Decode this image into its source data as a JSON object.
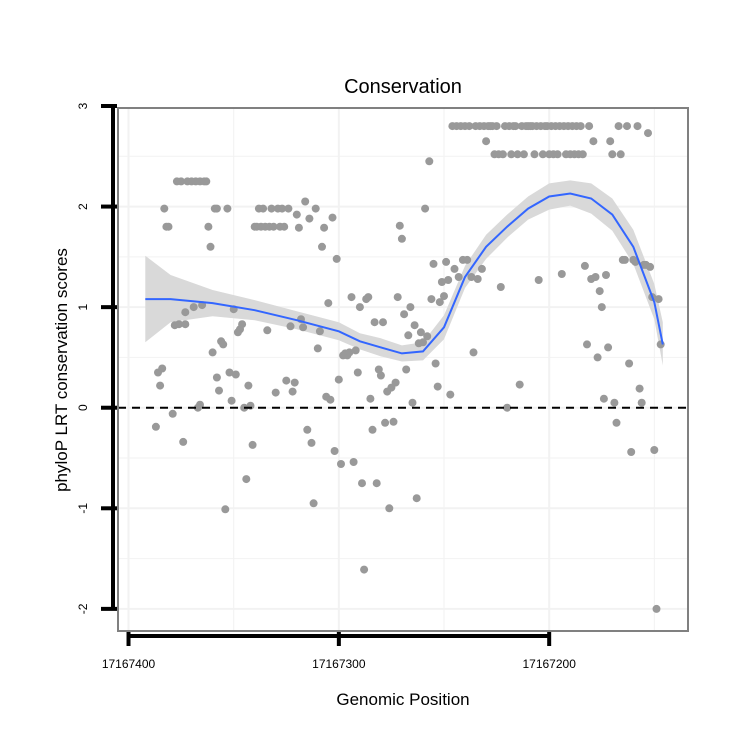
{
  "chart_data": {
    "type": "scatter",
    "title": "Conservation",
    "xlabel": "Genomic Position",
    "ylabel": "phyloP LRT conservation scores",
    "x_reversed": true,
    "xlim": [
      17167405,
      17167134
    ],
    "ylim": [
      -2.22,
      2.98
    ],
    "x_ticks": [
      17167400,
      17167300,
      17167200
    ],
    "x_tick_labels": [
      "17167400",
      "17167300",
      "17167200"
    ],
    "y_ticks": [
      -2,
      -1,
      0,
      1,
      2,
      3
    ],
    "y_tick_labels": [
      "-2",
      "-1",
      "0",
      "1",
      "2",
      "3"
    ],
    "grid": true,
    "reference_line": {
      "y": 0,
      "style": "dashed"
    },
    "colors": {
      "points": "#999999",
      "smooth": "#3366ff",
      "ribbon": "#d9d9d9",
      "panel_border": "#808080",
      "grid": "#f2f2f2"
    },
    "series": [
      {
        "kind": "points",
        "points": [
          [
            17167387,
            -0.19
          ],
          [
            17167386,
            0.35
          ],
          [
            17167385,
            0.22
          ],
          [
            17167384,
            0.39
          ],
          [
            17167383,
            1.98
          ],
          [
            17167382,
            1.8
          ],
          [
            17167381,
            1.8
          ],
          [
            17167379,
            -0.06
          ],
          [
            17167378,
            0.82
          ],
          [
            17167377,
            2.25
          ],
          [
            17167376,
            0.83
          ],
          [
            17167375,
            2.25
          ],
          [
            17167374,
            -0.34
          ],
          [
            17167373,
            0.83
          ],
          [
            17167373,
            0.95
          ],
          [
            17167372,
            2.25
          ],
          [
            17167370,
            2.25
          ],
          [
            17167369,
            1.0
          ],
          [
            17167368,
            2.25
          ],
          [
            17167367,
            0.0
          ],
          [
            17167366,
            0.03
          ],
          [
            17167366,
            2.25
          ],
          [
            17167365,
            1.02
          ],
          [
            17167364,
            2.25
          ],
          [
            17167363,
            2.25
          ],
          [
            17167362,
            1.8
          ],
          [
            17167361,
            1.6
          ],
          [
            17167360,
            0.55
          ],
          [
            17167359,
            1.98
          ],
          [
            17167358,
            0.3
          ],
          [
            17167358,
            1.98
          ],
          [
            17167357,
            0.17
          ],
          [
            17167356,
            0.66
          ],
          [
            17167355,
            0.63
          ],
          [
            17167354,
            -1.01
          ],
          [
            17167353,
            1.98
          ],
          [
            17167352,
            0.35
          ],
          [
            17167351,
            0.07
          ],
          [
            17167350,
            0.98
          ],
          [
            17167349,
            0.33
          ],
          [
            17167348,
            0.75
          ],
          [
            17167347,
            0.78
          ],
          [
            17167346,
            0.83
          ],
          [
            17167345,
            0.0
          ],
          [
            17167344,
            -0.71
          ],
          [
            17167343,
            0.22
          ],
          [
            17167342,
            0.02
          ],
          [
            17167341,
            -0.37
          ],
          [
            17167340,
            1.8
          ],
          [
            17167339,
            1.8
          ],
          [
            17167338,
            1.98
          ],
          [
            17167337,
            1.8
          ],
          [
            17167336,
            1.98
          ],
          [
            17167335,
            1.8
          ],
          [
            17167334,
            0.77
          ],
          [
            17167333,
            1.8
          ],
          [
            17167332,
            1.98
          ],
          [
            17167331,
            1.8
          ],
          [
            17167330,
            0.15
          ],
          [
            17167329,
            1.98
          ],
          [
            17167328,
            1.8
          ],
          [
            17167327,
            1.98
          ],
          [
            17167326,
            1.8
          ],
          [
            17167325,
            0.27
          ],
          [
            17167324,
            1.98
          ],
          [
            17167323,
            0.81
          ],
          [
            17167322,
            0.16
          ],
          [
            17167321,
            0.25
          ],
          [
            17167320,
            1.92
          ],
          [
            17167319,
            1.79
          ],
          [
            17167318,
            0.88
          ],
          [
            17167317,
            0.8
          ],
          [
            17167316,
            2.05
          ],
          [
            17167315,
            -0.22
          ],
          [
            17167314,
            1.88
          ],
          [
            17167313,
            -0.35
          ],
          [
            17167312,
            -0.95
          ],
          [
            17167311,
            1.98
          ],
          [
            17167310,
            0.59
          ],
          [
            17167309,
            0.76
          ],
          [
            17167308,
            1.6
          ],
          [
            17167307,
            1.79
          ],
          [
            17167306,
            0.11
          ],
          [
            17167305,
            1.04
          ],
          [
            17167304,
            0.08
          ],
          [
            17167303,
            1.89
          ],
          [
            17167302,
            -0.43
          ],
          [
            17167301,
            1.48
          ],
          [
            17167300,
            0.28
          ],
          [
            17167299,
            -0.56
          ],
          [
            17167298,
            0.52
          ],
          [
            17167297,
            0.54
          ],
          [
            17167296,
            0.52
          ],
          [
            17167295,
            0.55
          ],
          [
            17167294,
            1.1
          ],
          [
            17167293,
            -0.54
          ],
          [
            17167292,
            0.57
          ],
          [
            17167291,
            0.35
          ],
          [
            17167290,
            1.0
          ],
          [
            17167289,
            -0.75
          ],
          [
            17167288,
            -1.61
          ],
          [
            17167287,
            1.08
          ],
          [
            17167286,
            1.1
          ],
          [
            17167285,
            0.09
          ],
          [
            17167284,
            -0.22
          ],
          [
            17167283,
            0.85
          ],
          [
            17167282,
            -0.75
          ],
          [
            17167281,
            0.38
          ],
          [
            17167280,
            0.32
          ],
          [
            17167279,
            0.85
          ],
          [
            17167278,
            -0.15
          ],
          [
            17167277,
            0.16
          ],
          [
            17167276,
            -1.0
          ],
          [
            17167275,
            0.2
          ],
          [
            17167274,
            -0.14
          ],
          [
            17167273,
            0.25
          ],
          [
            17167272,
            1.1
          ],
          [
            17167271,
            1.81
          ],
          [
            17167270,
            1.68
          ],
          [
            17167269,
            0.93
          ],
          [
            17167268,
            0.38
          ],
          [
            17167267,
            0.72
          ],
          [
            17167266,
            1.0
          ],
          [
            17167265,
            0.05
          ],
          [
            17167264,
            0.82
          ],
          [
            17167263,
            -0.9
          ],
          [
            17167262,
            0.64
          ],
          [
            17167261,
            0.75
          ],
          [
            17167260,
            0.65
          ],
          [
            17167259,
            1.98
          ],
          [
            17167258,
            0.71
          ],
          [
            17167257,
            2.45
          ],
          [
            17167256,
            1.08
          ],
          [
            17167255,
            1.43
          ],
          [
            17167254,
            0.44
          ],
          [
            17167253,
            0.21
          ],
          [
            17167252,
            1.05
          ],
          [
            17167251,
            1.25
          ],
          [
            17167250,
            1.11
          ],
          [
            17167249,
            1.45
          ],
          [
            17167248,
            1.27
          ],
          [
            17167247,
            0.13
          ],
          [
            17167246,
            2.8
          ],
          [
            17167245,
            1.38
          ],
          [
            17167244,
            2.8
          ],
          [
            17167243,
            1.3
          ],
          [
            17167242,
            2.8
          ],
          [
            17167241,
            1.47
          ],
          [
            17167240,
            2.8
          ],
          [
            17167239,
            1.47
          ],
          [
            17167238,
            2.8
          ],
          [
            17167237,
            1.3
          ],
          [
            17167236,
            0.55
          ],
          [
            17167235,
            2.8
          ],
          [
            17167234,
            1.28
          ],
          [
            17167233,
            2.8
          ],
          [
            17167232,
            1.38
          ],
          [
            17167231,
            2.8
          ],
          [
            17167230,
            2.65
          ],
          [
            17167229,
            2.8
          ],
          [
            17167228,
            2.8
          ],
          [
            17167227,
            2.8
          ],
          [
            17167226,
            2.52
          ],
          [
            17167225,
            2.8
          ],
          [
            17167224,
            2.52
          ],
          [
            17167223,
            1.2
          ],
          [
            17167222,
            2.52
          ],
          [
            17167221,
            2.8
          ],
          [
            17167220,
            0.0
          ],
          [
            17167219,
            2.8
          ],
          [
            17167218,
            2.52
          ],
          [
            17167217,
            2.8
          ],
          [
            17167216,
            2.8
          ],
          [
            17167215,
            2.52
          ],
          [
            17167214,
            0.23
          ],
          [
            17167213,
            2.8
          ],
          [
            17167212,
            2.52
          ],
          [
            17167211,
            2.8
          ],
          [
            17167210,
            2.8
          ],
          [
            17167209,
            2.8
          ],
          [
            17167208,
            2.8
          ],
          [
            17167207,
            2.52
          ],
          [
            17167206,
            2.8
          ],
          [
            17167205,
            1.27
          ],
          [
            17167204,
            2.8
          ],
          [
            17167203,
            2.52
          ],
          [
            17167202,
            2.8
          ],
          [
            17167201,
            2.8
          ],
          [
            17167200,
            2.52
          ],
          [
            17167199,
            2.8
          ],
          [
            17167198,
            2.52
          ],
          [
            17167197,
            2.8
          ],
          [
            17167196,
            2.52
          ],
          [
            17167195,
            2.8
          ],
          [
            17167194,
            1.33
          ],
          [
            17167193,
            2.8
          ],
          [
            17167192,
            2.52
          ],
          [
            17167191,
            2.8
          ],
          [
            17167190,
            2.52
          ],
          [
            17167189,
            2.8
          ],
          [
            17167188,
            2.52
          ],
          [
            17167187,
            2.8
          ],
          [
            17167186,
            2.52
          ],
          [
            17167185,
            2.8
          ],
          [
            17167184,
            2.52
          ],
          [
            17167183,
            1.41
          ],
          [
            17167182,
            0.63
          ],
          [
            17167181,
            2.8
          ],
          [
            17167180,
            1.28
          ],
          [
            17167179,
            2.65
          ],
          [
            17167178,
            1.3
          ],
          [
            17167177,
            0.5
          ],
          [
            17167176,
            1.16
          ],
          [
            17167175,
            1.0
          ],
          [
            17167174,
            0.09
          ],
          [
            17167173,
            1.32
          ],
          [
            17167172,
            0.6
          ],
          [
            17167171,
            2.65
          ],
          [
            17167170,
            2.52
          ],
          [
            17167169,
            0.05
          ],
          [
            17167168,
            -0.15
          ],
          [
            17167167,
            2.8
          ],
          [
            17167166,
            2.52
          ],
          [
            17167165,
            1.47
          ],
          [
            17167164,
            1.47
          ],
          [
            17167163,
            2.8
          ],
          [
            17167162,
            0.44
          ],
          [
            17167161,
            -0.44
          ],
          [
            17167160,
            1.47
          ],
          [
            17167159,
            1.45
          ],
          [
            17167158,
            2.8
          ],
          [
            17167157,
            0.19
          ],
          [
            17167156,
            0.05
          ],
          [
            17167155,
            1.42
          ],
          [
            17167154,
            1.42
          ],
          [
            17167153,
            2.73
          ],
          [
            17167152,
            1.4
          ],
          [
            17167151,
            1.1
          ],
          [
            17167150,
            -0.42
          ],
          [
            17167149,
            -2.0
          ],
          [
            17167148,
            1.08
          ],
          [
            17167147,
            0.63
          ]
        ]
      },
      {
        "kind": "loess",
        "x": [
          17167392,
          17167380,
          17167360,
          17167340,
          17167320,
          17167300,
          17167290,
          17167280,
          17167270,
          17167260,
          17167250,
          17167240,
          17167230,
          17167220,
          17167210,
          17167200,
          17167190,
          17167180,
          17167170,
          17167160,
          17167150,
          17167146
        ],
        "y": [
          1.08,
          1.08,
          1.04,
          0.97,
          0.87,
          0.76,
          0.66,
          0.6,
          0.54,
          0.56,
          0.8,
          1.3,
          1.6,
          1.8,
          1.98,
          2.1,
          2.13,
          2.08,
          1.92,
          1.6,
          1.05,
          0.63
        ],
        "lower": [
          0.65,
          0.85,
          0.91,
          0.87,
          0.78,
          0.67,
          0.58,
          0.51,
          0.46,
          0.47,
          0.68,
          1.19,
          1.48,
          1.69,
          1.87,
          1.97,
          2.01,
          1.93,
          1.76,
          1.43,
          0.88,
          0.42
        ],
        "upper": [
          1.51,
          1.32,
          1.17,
          1.07,
          0.96,
          0.85,
          0.74,
          0.69,
          0.62,
          0.65,
          0.92,
          1.41,
          1.72,
          1.92,
          2.1,
          2.23,
          2.26,
          2.23,
          2.08,
          1.77,
          1.23,
          0.85
        ]
      }
    ]
  }
}
